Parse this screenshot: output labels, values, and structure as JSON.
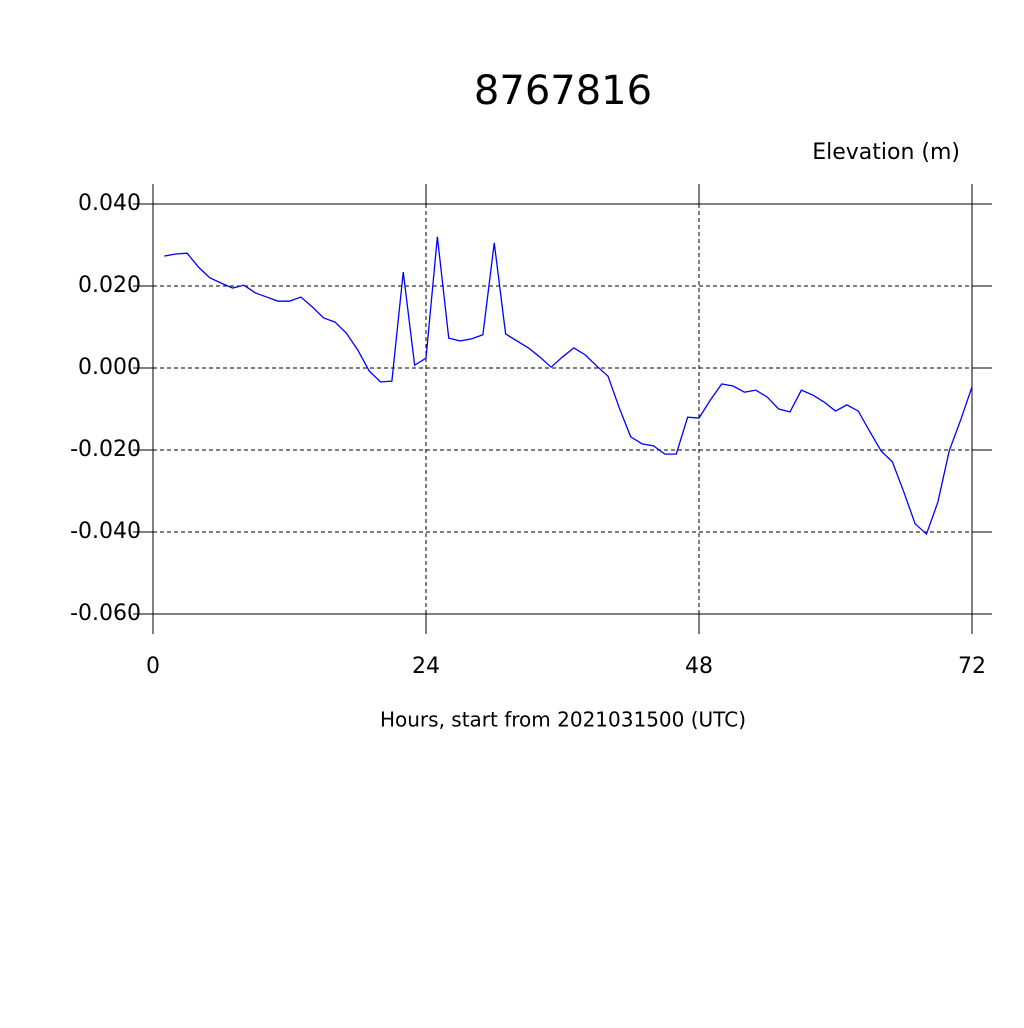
{
  "chart_data": {
    "type": "line",
    "title": "8767816",
    "subtitle": "Elevation (m)",
    "x_label": "Hours, start from 2021031500 (UTC)",
    "x": [
      1,
      2,
      3,
      4,
      5,
      6,
      7,
      8,
      9,
      10,
      11,
      12,
      13,
      14,
      15,
      16,
      17,
      18,
      19,
      20,
      21,
      22,
      23,
      24,
      25,
      26,
      27,
      28,
      29,
      30,
      31,
      32,
      33,
      34,
      35,
      36,
      37,
      38,
      39,
      40,
      41,
      42,
      43,
      44,
      45,
      46,
      47,
      48,
      49,
      50,
      51,
      52,
      53,
      54,
      55,
      56,
      57,
      58,
      59,
      60,
      61,
      62,
      63,
      64,
      65,
      66,
      67,
      68,
      69,
      70,
      71,
      72
    ],
    "series": [
      {
        "name": "Elevation",
        "color": "#0000ff",
        "values": [
          0.0273,
          0.0278,
          0.028,
          0.0246,
          0.022,
          0.0207,
          0.0195,
          0.0202,
          0.0183,
          0.0173,
          0.0163,
          0.0163,
          0.0173,
          0.0149,
          0.0122,
          0.0112,
          0.0085,
          0.0044,
          -0.0007,
          -0.0034,
          -0.0032,
          0.0234,
          0.0007,
          0.0024,
          0.032,
          0.0073,
          0.0066,
          0.0071,
          0.0081,
          0.0305,
          0.0083,
          0.0066,
          0.0049,
          0.0027,
          0.0002,
          0.0027,
          0.0049,
          0.0032,
          0.0005,
          -0.002,
          -0.0098,
          -0.0168,
          -0.0185,
          -0.019,
          -0.021,
          -0.021,
          -0.012,
          -0.0122,
          -0.0078,
          -0.0039,
          -0.0044,
          -0.0059,
          -0.0054,
          -0.0071,
          -0.01,
          -0.0107,
          -0.0054,
          -0.0066,
          -0.0083,
          -0.0105,
          -0.009,
          -0.0105,
          -0.0154,
          -0.0202,
          -0.0229,
          -0.0302,
          -0.038,
          -0.0405,
          -0.0327,
          -0.0202,
          -0.0127,
          -0.0046
        ]
      }
    ],
    "xlim": [
      0,
      72
    ],
    "xticks": [
      0,
      24,
      48,
      72
    ],
    "ylim": [
      -0.06,
      0.04
    ],
    "yticks": [
      {
        "value": -0.06,
        "label": "-0.060"
      },
      {
        "value": -0.04,
        "label": "-0.040"
      },
      {
        "value": -0.02,
        "label": "-0.020"
      },
      {
        "value": 0,
        "label": "0.000"
      },
      {
        "value": 0.02,
        "label": "0.020"
      },
      {
        "value": 0.04,
        "label": "0.040"
      }
    ],
    "grid": true
  }
}
